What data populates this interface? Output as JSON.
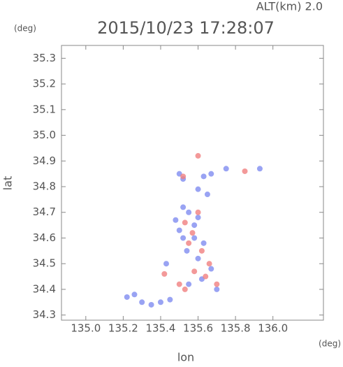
{
  "chart_data": {
    "type": "scatter",
    "title": "2015/10/23 17:28:07",
    "subtitle": "ALT(km) 2.0",
    "y_unit": "(deg)",
    "x_unit": "(deg)",
    "x_label": "lon",
    "y_label": "lat",
    "xlim": [
      134.87,
      136.27
    ],
    "ylim": [
      34.28,
      35.35
    ],
    "xticks": [
      {
        "value": 135.0,
        "label": "135.0"
      },
      135.2,
      135.4,
      135.6,
      135.8,
      {
        "value": 136.0,
        "label": "136.0"
      }
    ],
    "yticks": [
      34.3,
      34.4,
      34.5,
      34.6,
      34.7,
      34.8,
      34.9,
      {
        "value": 35.0,
        "label": "35.0"
      },
      35.1,
      35.2,
      35.3
    ],
    "series": [
      {
        "color": "#7f8cf0",
        "x": [
          135.5,
          135.52,
          135.63,
          135.67,
          135.75,
          135.93,
          135.6,
          135.65,
          135.52,
          135.55,
          135.6,
          135.48,
          135.5,
          135.58,
          135.63,
          135.54,
          135.6,
          135.67,
          135.62,
          135.55,
          135.45,
          135.4,
          135.22,
          135.26,
          135.3,
          135.35,
          135.43,
          135.7,
          135.58,
          135.52
        ],
        "values": [
          34.85,
          34.83,
          34.84,
          34.85,
          34.87,
          34.87,
          34.79,
          34.77,
          34.72,
          34.7,
          34.68,
          34.67,
          34.63,
          34.6,
          34.58,
          34.55,
          34.52,
          34.48,
          34.44,
          34.42,
          34.36,
          34.35,
          34.37,
          34.38,
          34.35,
          34.34,
          34.5,
          34.4,
          34.65,
          34.6
        ]
      },
      {
        "color": "#f07f7f",
        "x": [
          135.6,
          135.85,
          135.53,
          135.57,
          135.6,
          135.55,
          135.58,
          135.64,
          135.5,
          135.53,
          135.42,
          135.66,
          135.62,
          135.52,
          135.7
        ],
        "values": [
          34.92,
          34.86,
          34.66,
          34.62,
          34.7,
          34.58,
          34.47,
          34.45,
          34.42,
          34.4,
          34.46,
          34.5,
          34.55,
          34.84,
          34.42
        ]
      }
    ]
  }
}
